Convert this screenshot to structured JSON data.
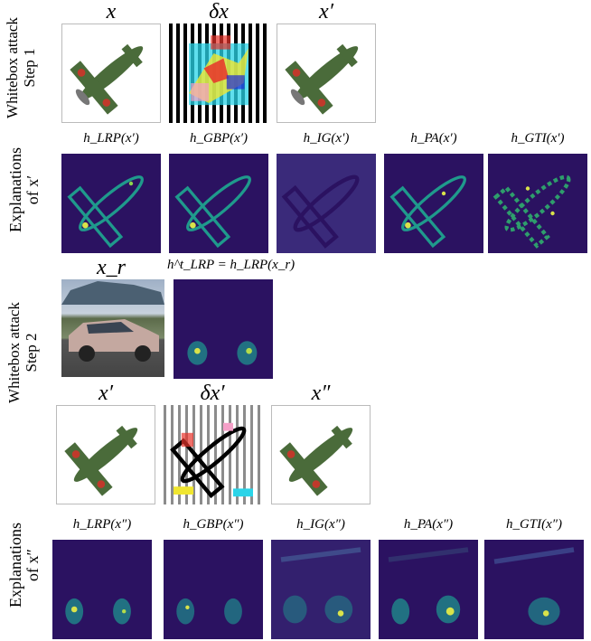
{
  "rows": {
    "step1_label": [
      "Whitebox attack",
      "Step 1"
    ],
    "expl1_label": [
      "Explanations",
      "of  x′"
    ],
    "step2_label": [
      "Whitebox attack",
      "Step 2"
    ],
    "expl2_label": [
      "Explanations",
      "of  x″"
    ]
  },
  "step1": {
    "cols": [
      "x",
      "δx",
      "x′"
    ]
  },
  "explanations1": {
    "cols": [
      "h_LRP(x′)",
      "h_GBP(x′)",
      "h_IG(x′)",
      "h_PA(x′)",
      "h_GTI(x′)"
    ]
  },
  "step2_top": {
    "cols": [
      "x_r",
      "h^t_LRP = h_LRP(x_r)"
    ]
  },
  "step2_bottom": {
    "cols": [
      "x′",
      "δx′",
      "x″"
    ]
  },
  "explanations2": {
    "cols": [
      "h_LRP(x″)",
      "h_GBP(x″)",
      "h_IG(x″)",
      "h_PA(x″)",
      "h_GTI(x″)"
    ]
  },
  "colors": {
    "heat_bg": "#2b1261",
    "heat_mid": "#1f8a8b",
    "heat_hot": "#d9e34a",
    "plane_green": "#4a6b3a",
    "plane_red": "#c0392b"
  }
}
